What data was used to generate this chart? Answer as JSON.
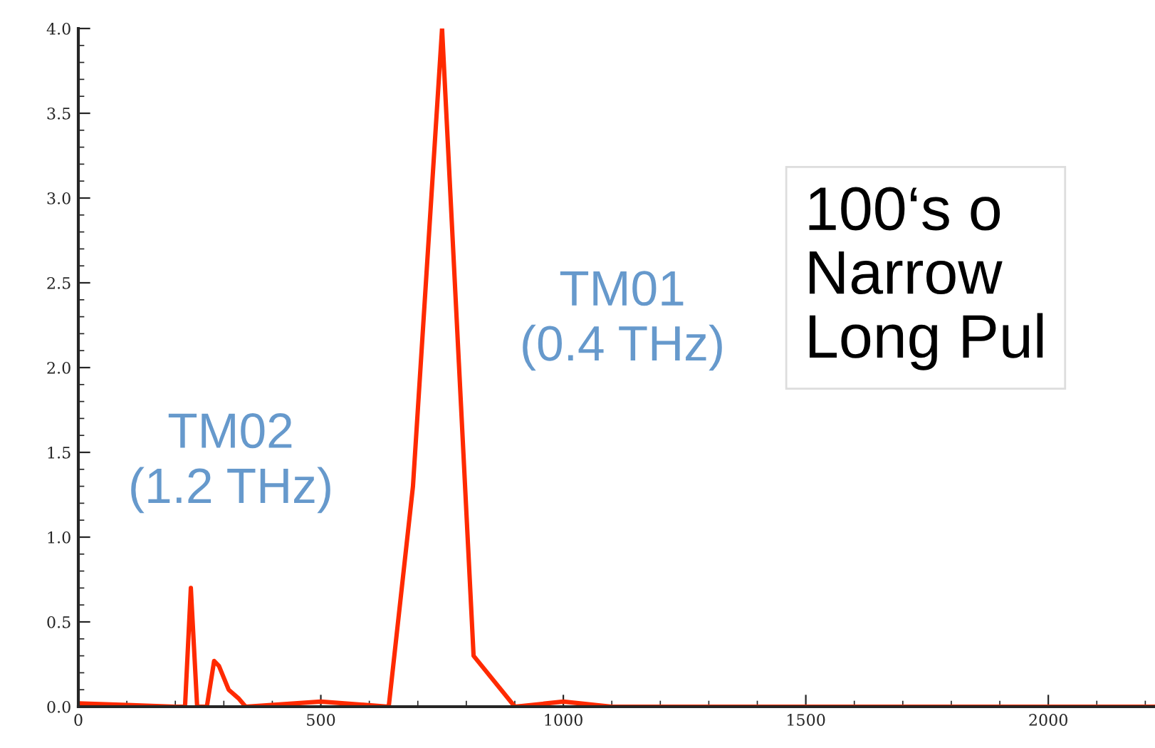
{
  "chart_data": {
    "type": "line",
    "x": [
      0,
      100,
      200,
      220,
      232,
      245,
      265,
      280,
      290,
      310,
      330,
      345,
      500,
      640,
      690,
      750,
      815,
      900,
      1000,
      1100,
      2220
    ],
    "series": [
      {
        "color": "#ff2a00",
        "values": [
          0.02,
          0.01,
          0.0,
          0.0,
          0.7,
          0.0,
          0.0,
          0.27,
          0.24,
          0.1,
          0.05,
          0.0,
          0.03,
          0.0,
          1.3,
          4.0,
          0.3,
          0.0,
          0.03,
          0.0,
          0.0
        ]
      }
    ],
    "xlim": [
      0,
      2220
    ],
    "ylim": [
      0,
      4.0
    ],
    "xticks": [
      0,
      500,
      1000,
      1500,
      2000
    ],
    "yticks": [
      {
        "value": 0,
        "label": "0.0"
      },
      {
        "value": 0.5,
        "label": "0.5"
      },
      {
        "value": 1,
        "label": "1.0"
      },
      {
        "value": 1.5,
        "label": "1.5"
      },
      {
        "value": 2,
        "label": "2.0"
      },
      {
        "value": 2.5,
        "label": "2.5"
      },
      {
        "value": 3,
        "label": "3.0"
      },
      {
        "value": 3.5,
        "label": "3.5"
      },
      {
        "value": 4,
        "label": "4.0"
      }
    ],
    "grid": false,
    "legend": false,
    "marker": "none",
    "line_style": "solid",
    "annotations": [
      "TM02\n(1.2 THz)",
      "TM01\n(0.4 THz)",
      "100‘s o\nNarrow\nLong Pul"
    ]
  }
}
